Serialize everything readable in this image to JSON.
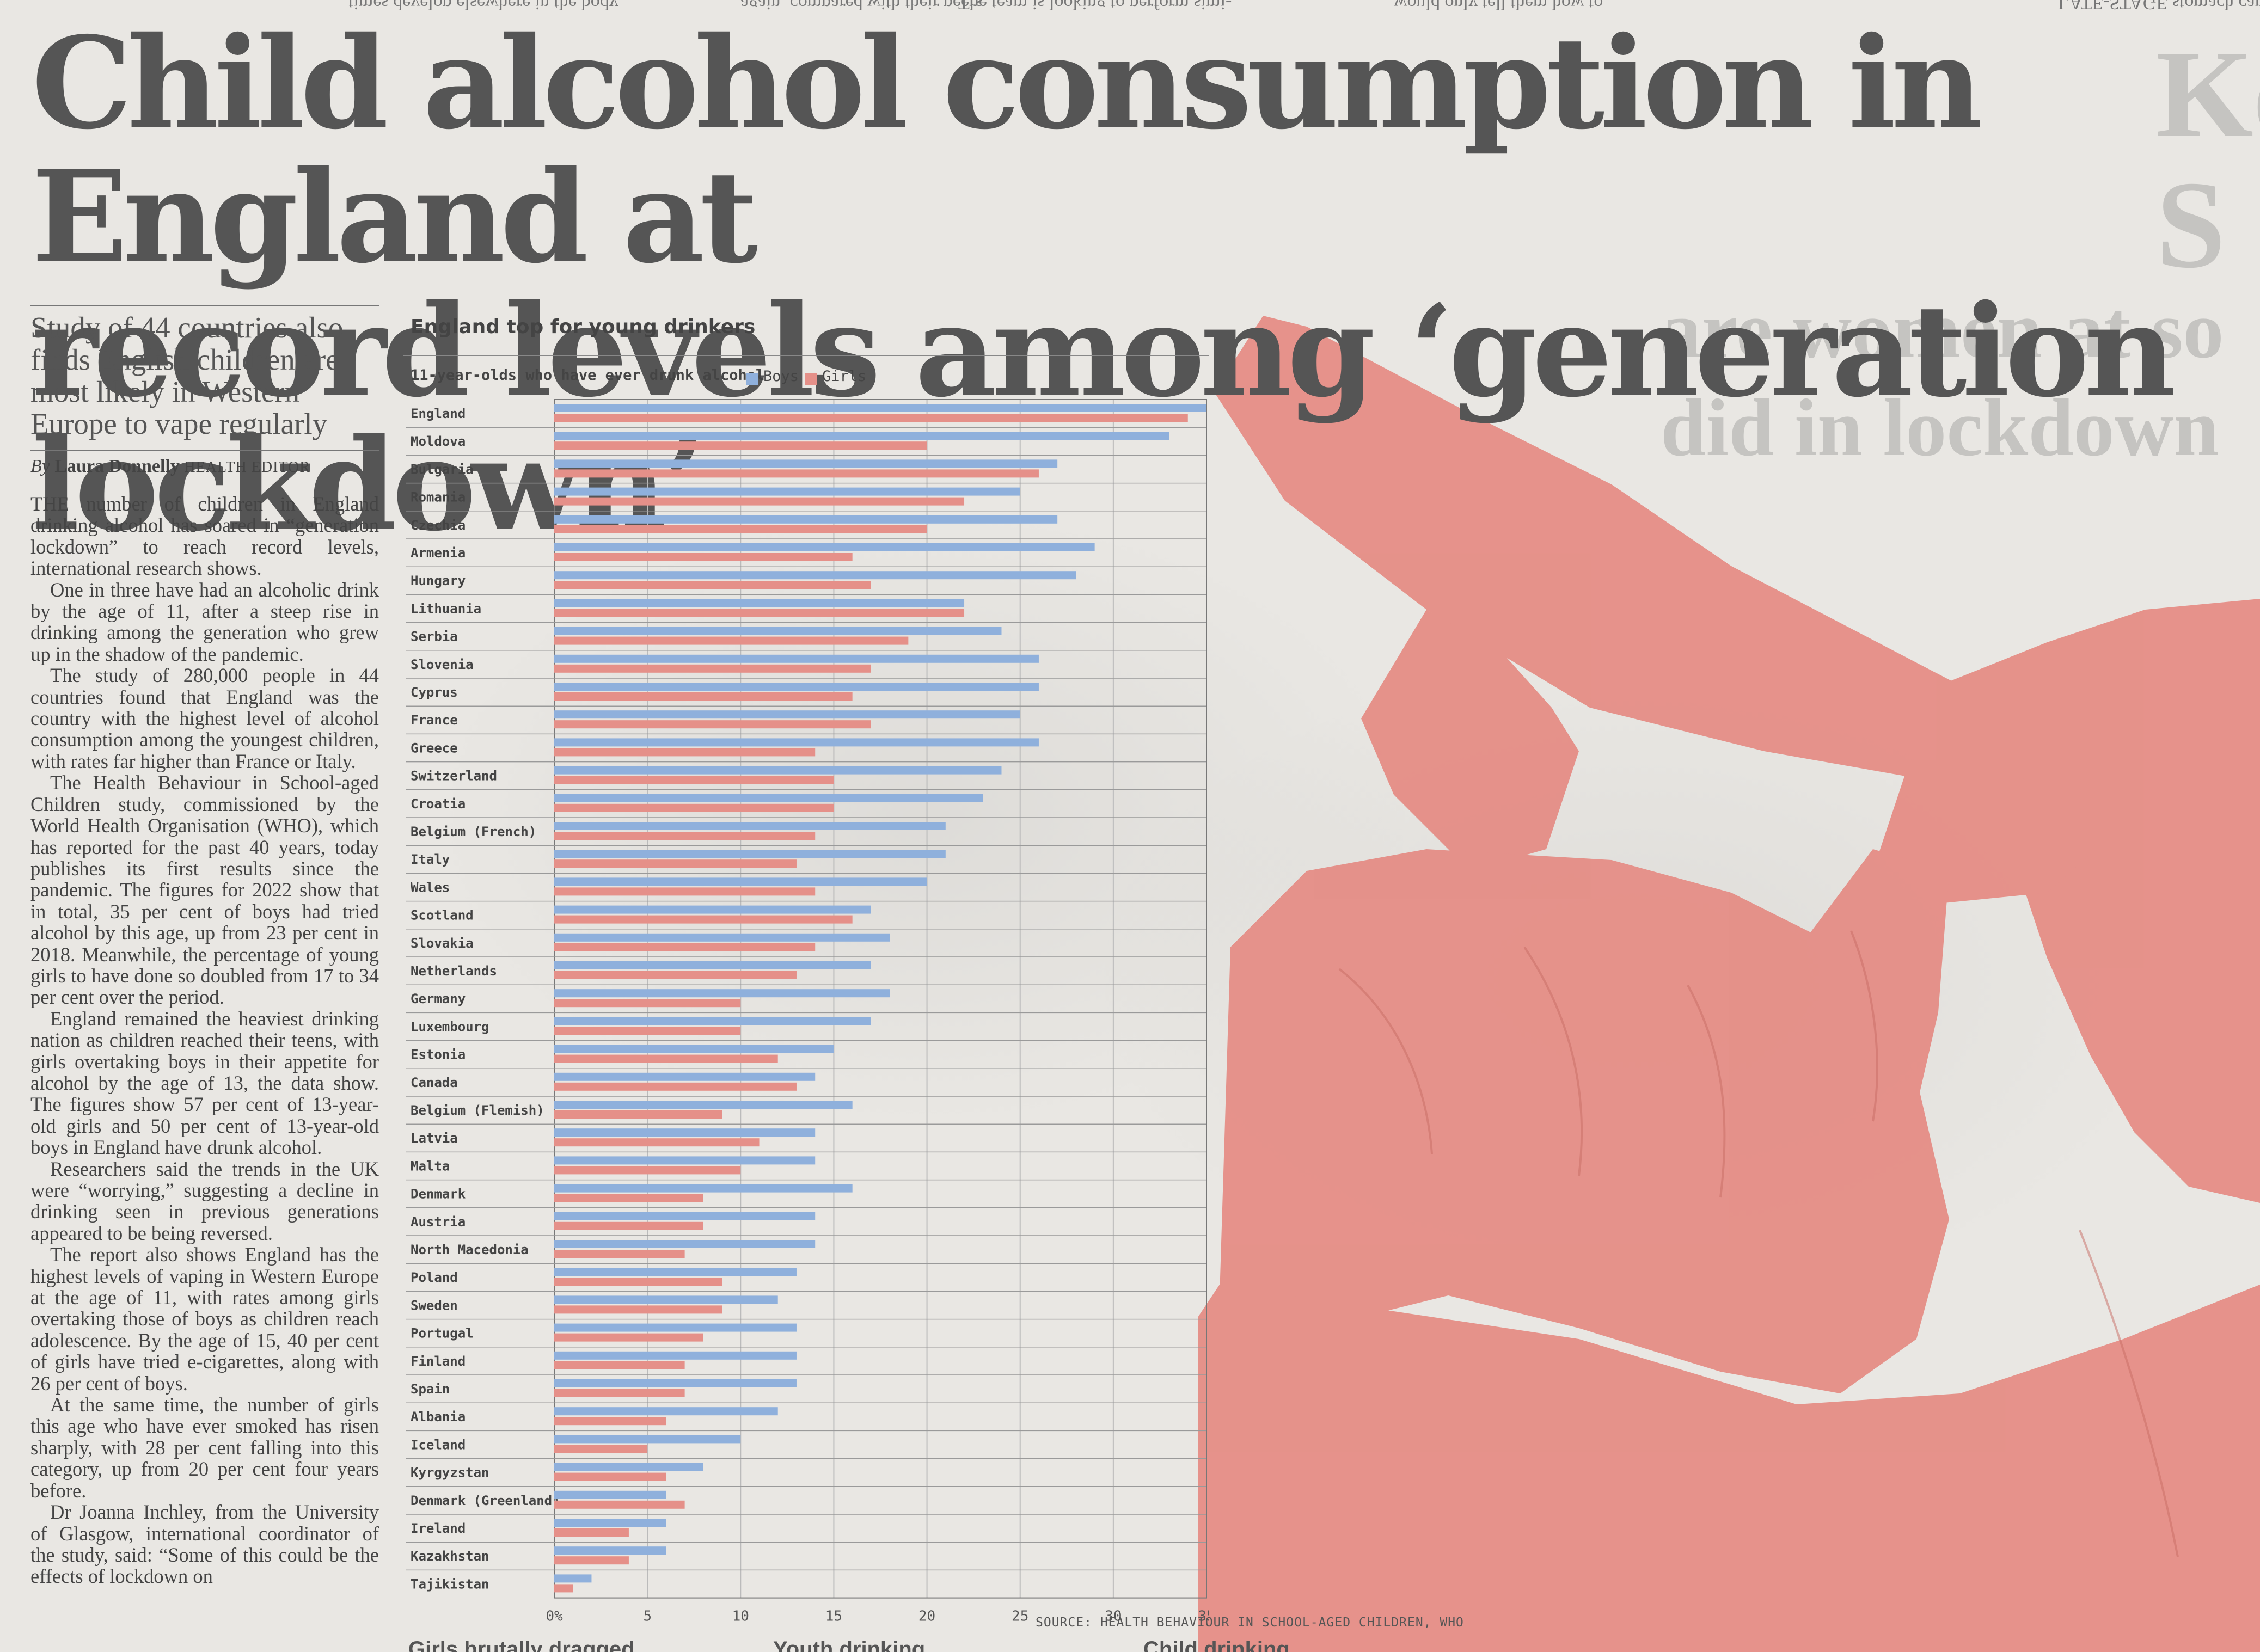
{
  "headline": [
    "Child alcohol consumption in England at",
    "record levels among ‘generation lockdown’"
  ],
  "standfirst": "Study of 44 countries also finds English children are most likely in Western Europe to vape regularly",
  "byline": {
    "by": "By",
    "name": "Laura Donnelly",
    "role": "HEALTH EDITOR"
  },
  "body": [
    "THE number of children in England drinking alcohol has soared in “generation lockdown” to reach record levels, international research shows.",
    "One in three have had an alcoholic drink by the age of 11, after a steep rise in drinking among the generation who grew up in the shadow of the pandemic.",
    "The study of 280,000 people in 44 countries found that England was the country with the highest level of alcohol consumption among the youngest children, with rates far higher than France or Italy.",
    "The Health Behaviour in School-aged Children study, commissioned by the World Health Organisation (WHO), which has reported for the past 40 years, today publishes its first results since the pandemic. The figures for 2022 show that in total, 35 per cent of boys had tried alcohol by this age, up from 23 per cent in 2018. Meanwhile, the percentage of young girls to have done so doubled from 17 to 34 per cent over the period.",
    "England remained the heaviest drinking nation as children reached their teens, with girls overtaking boys in their appetite for alcohol by the age of 13, the data show. The figures show 57 per cent of 13-year-old girls and 50 per cent of 13-year-old boys in England have drunk alcohol.",
    "Researchers said the trends in the UK were “worrying,” suggesting a decline in drinking seen in previous generations appeared to be being reversed.",
    "The report also shows England has the highest levels of vaping in Western Europe at the age of 11, with rates among girls overtaking those of boys as children reach adolescence. By the age of 15, 40 per cent of girls have tried e-cigarettes, along with 26 per cent of boys.",
    "At the same time, the number of girls this age who have ever smoked has risen sharply, with 28 per cent falling into this category, up from 20 per cent four years before.",
    "Dr Joanna Inchley, from the University of Glasgow, international coordinator of the study, said: “Some of this could be the effects of lockdown on"
  ],
  "top_strip": [
    "times develop elsewhere in the body,",
    "again, compared with their peers",
    "The team is looking to perform simi-",
    "would only tell them how to",
    "LATE-STAGE stomach cance"
  ],
  "bottom_strip": [
    "Girls brutally dragged...",
    "Youth drinking",
    "Child drinking"
  ],
  "bleed_text": [
    "Ke",
    "S",
    "are women at so",
    "did in lockdown"
  ],
  "photo_icon": "bottle-drinking-silhouette",
  "colors": {
    "boys": "#8fb0dc",
    "girls": "#e59089",
    "photo": "#e58b83",
    "ink": "#444444"
  },
  "chart_data": {
    "type": "bar",
    "orientation": "horizontal",
    "title": "England top for young drinkers",
    "subtitle": "11-year-olds who have ever drunk alcohol",
    "source": "SOURCE: HEALTH BEHAVIOUR IN SCHOOL-AGED CHILDREN, WHO",
    "xlim": [
      0,
      35
    ],
    "ticks": [
      "0%",
      "5",
      "10",
      "15",
      "20",
      "25",
      "30",
      "35"
    ],
    "legend_placement": "top",
    "categories": [
      "England",
      "Moldova",
      "Bulgaria",
      "Romania",
      "Czechia",
      "Armenia",
      "Hungary",
      "Lithuania",
      "Serbia",
      "Slovenia",
      "Cyprus",
      "France",
      "Greece",
      "Switzerland",
      "Croatia",
      "Belgium (French)",
      "Italy",
      "Wales",
      "Scotland",
      "Slovakia",
      "Netherlands",
      "Germany",
      "Luxembourg",
      "Estonia",
      "Canada",
      "Belgium (Flemish)",
      "Latvia",
      "Malta",
      "Denmark",
      "Austria",
      "North Macedonia",
      "Poland",
      "Sweden",
      "Portugal",
      "Finland",
      "Spain",
      "Albania",
      "Iceland",
      "Kyrgyzstan",
      "Denmark (Greenland)",
      "Ireland",
      "Kazakhstan",
      "Tajikistan"
    ],
    "series": [
      {
        "name": "Boys",
        "values": [
          35,
          33,
          27,
          25,
          27,
          29,
          28,
          22,
          24,
          26,
          26,
          25,
          26,
          24,
          23,
          21,
          21,
          20,
          17,
          18,
          17,
          18,
          17,
          15,
          14,
          16,
          14,
          14,
          16,
          14,
          14,
          13,
          12,
          13,
          13,
          13,
          12,
          10,
          8,
          6,
          6,
          6,
          2
        ]
      },
      {
        "name": "Girls",
        "values": [
          34,
          20,
          26,
          22,
          20,
          16,
          17,
          22,
          19,
          17,
          16,
          17,
          14,
          15,
          15,
          14,
          13,
          14,
          16,
          14,
          13,
          10,
          10,
          12,
          13,
          9,
          11,
          10,
          8,
          8,
          7,
          9,
          9,
          8,
          7,
          7,
          6,
          5,
          6,
          7,
          4,
          4,
          1
        ]
      }
    ]
  }
}
